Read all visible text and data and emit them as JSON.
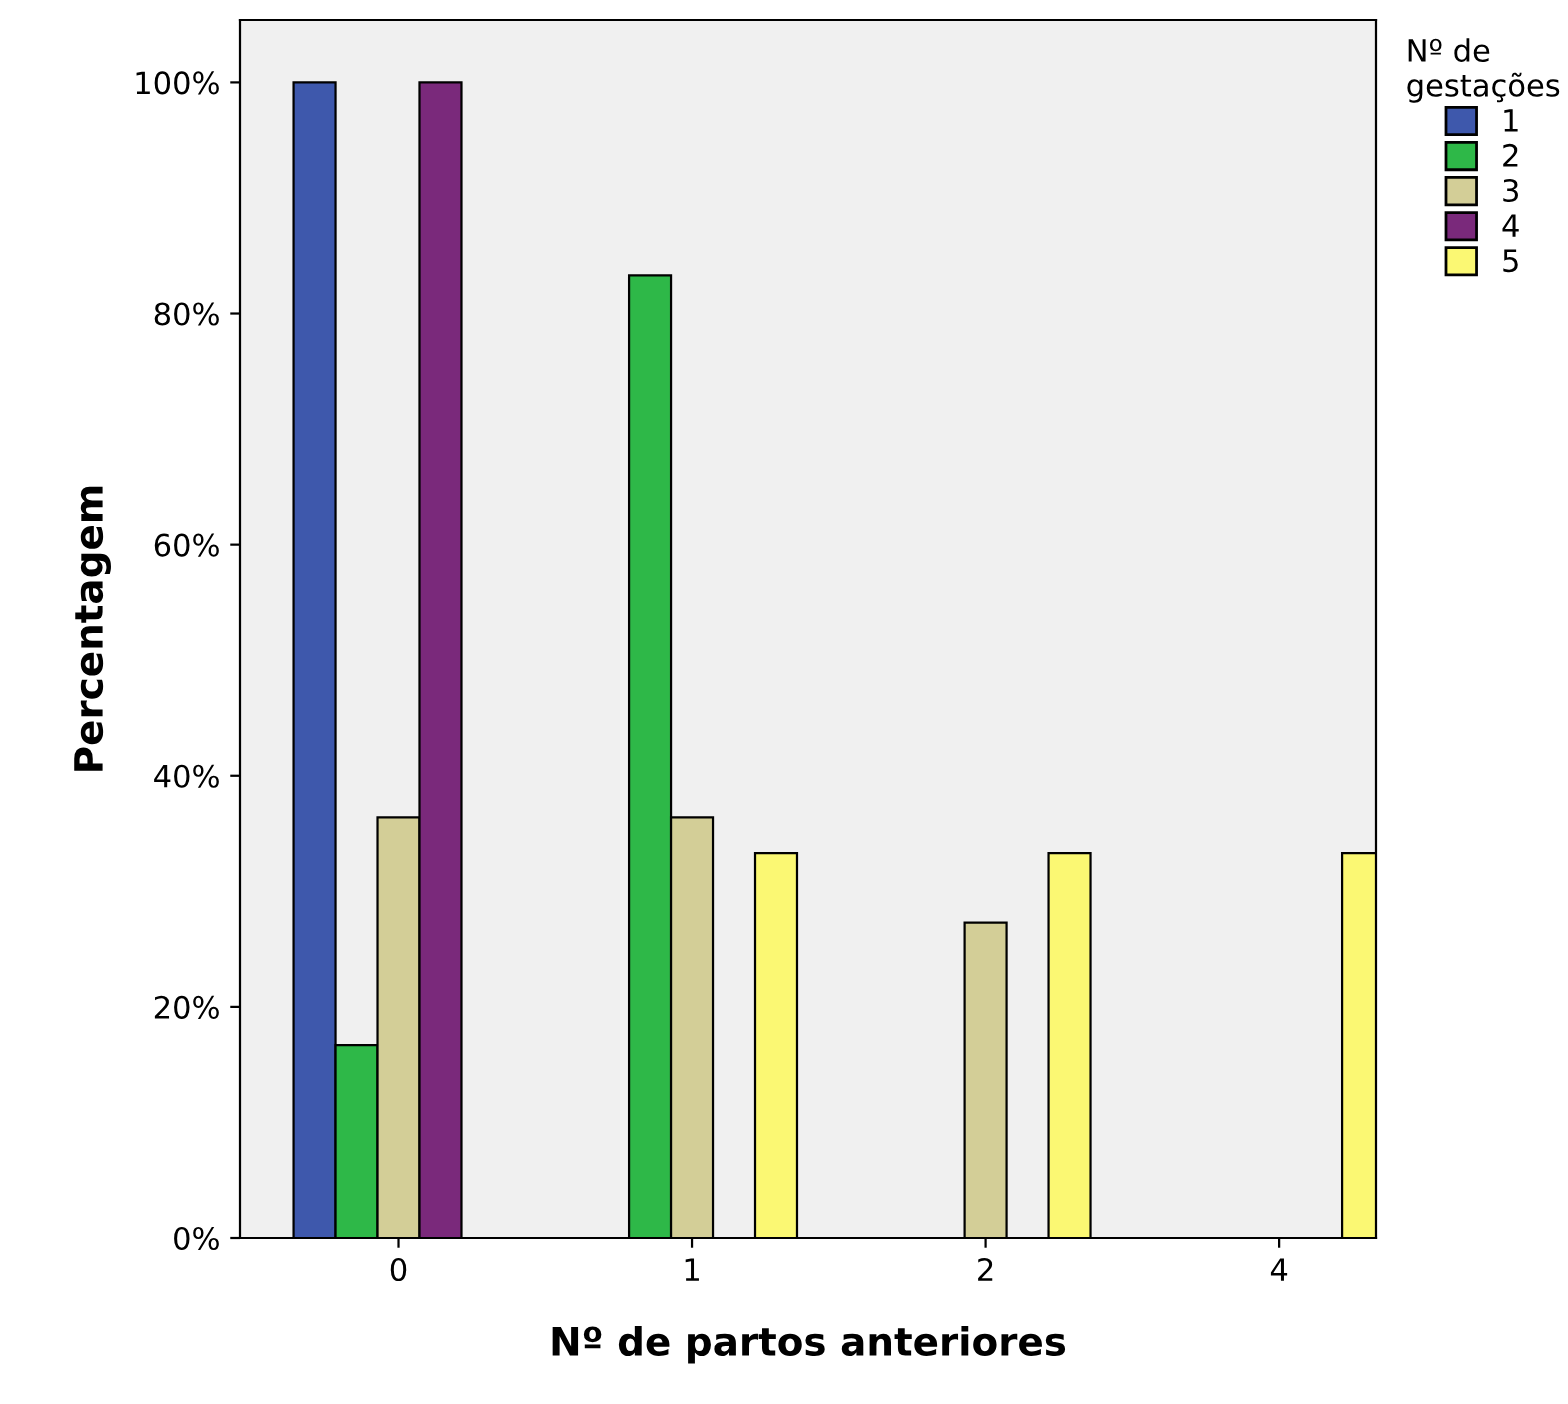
{
  "chart_data": {
    "type": "bar",
    "xlabel": "Nº de partos anteriores",
    "ylabel": "Percentagem",
    "legend_title": "Nº de\ngestações",
    "categories": [
      "0",
      "1",
      "2",
      "4"
    ],
    "series": [
      {
        "name": "1",
        "color": "#3e58ac",
        "values": [
          100,
          null,
          null,
          null
        ]
      },
      {
        "name": "2",
        "color": "#2eb848",
        "values": [
          16.7,
          83.3,
          null,
          null
        ]
      },
      {
        "name": "3",
        "color": "#d3ce97",
        "values": [
          36.4,
          36.4,
          27.3,
          null
        ]
      },
      {
        "name": "4",
        "color": "#7a297b",
        "values": [
          100,
          null,
          null,
          null
        ]
      },
      {
        "name": "5",
        "color": "#fbf873",
        "values": [
          null,
          33.3,
          33.3,
          33.3
        ]
      }
    ],
    "ylim": [
      0,
      105.4
    ],
    "yticks": [
      {
        "value": 0,
        "label": "0%"
      },
      {
        "value": 20,
        "label": "20%"
      },
      {
        "value": 40,
        "label": "40%"
      },
      {
        "value": 60,
        "label": "60%"
      },
      {
        "value": 80,
        "label": "80%"
      },
      {
        "value": 100,
        "label": "100%"
      }
    ],
    "grid": false,
    "legend": "right"
  }
}
